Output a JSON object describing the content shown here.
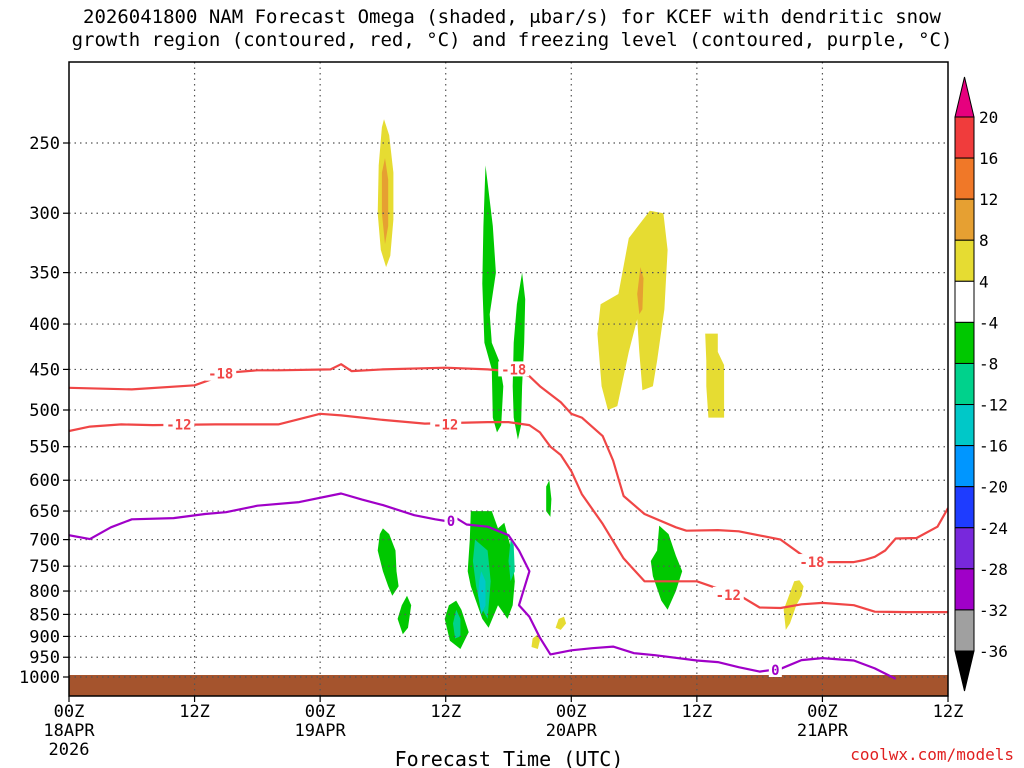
{
  "title": {
    "line1": "2026041800 NAM Forecast Omega (shaded, μbar/s) for KCEF with dendritic snow",
    "line2": "growth region (contoured, red, °C) and freezing level (contoured, purple, °C)"
  },
  "chart_data": {
    "type": "time-pressure cross-section",
    "xlabel": "Forecast Time (UTC)",
    "x_hours_range": [
      0,
      84
    ],
    "x_ticks": [
      {
        "hour": 0,
        "label": "00Z",
        "date": "18APR",
        "year": "2026"
      },
      {
        "hour": 12,
        "label": "12Z",
        "date": "",
        "year": ""
      },
      {
        "hour": 24,
        "label": "00Z",
        "date": "19APR",
        "year": ""
      },
      {
        "hour": 36,
        "label": "12Z",
        "date": "",
        "year": ""
      },
      {
        "hour": 48,
        "label": "00Z",
        "date": "20APR",
        "year": ""
      },
      {
        "hour": 60,
        "label": "12Z",
        "date": "",
        "year": ""
      },
      {
        "hour": 72,
        "label": "00Z",
        "date": "21APR",
        "year": ""
      },
      {
        "hour": 84,
        "label": "12Z",
        "date": "",
        "year": ""
      }
    ],
    "y_ticks": [
      250,
      300,
      350,
      400,
      450,
      500,
      550,
      600,
      650,
      700,
      750,
      800,
      850,
      900,
      950,
      1000
    ],
    "y_log": true,
    "y_range_hpa": [
      200,
      1040
    ],
    "grid": true,
    "colorbar": {
      "labels": [
        "20",
        "16",
        "12",
        "8",
        "4",
        "-4",
        "-8",
        "-12",
        "-16",
        "-20",
        "-24",
        "-28",
        "-32",
        "-36"
      ],
      "colors": [
        "#f03c3c",
        "#f07828",
        "#e6a032",
        "#e6dc32",
        "#ffffff",
        "#00c800",
        "#00d28c",
        "#00c8c8",
        "#0096ff",
        "#1e3cff",
        "#7828dc",
        "#a000c8",
        "#a0a0a0"
      ],
      "top_arrow_color": "#e6007e",
      "bottom_arrow_color": "#000000"
    },
    "contours": [
      {
        "label": "-18",
        "color": "#f04646",
        "points": [
          [
            0,
            472
          ],
          [
            6,
            474
          ],
          [
            12,
            469
          ],
          [
            14,
            460
          ],
          [
            16,
            453
          ],
          [
            18,
            451
          ],
          [
            20,
            451
          ],
          [
            25,
            450
          ],
          [
            26,
            444
          ],
          [
            27,
            452
          ],
          [
            30,
            450
          ],
          [
            36,
            448
          ],
          [
            40,
            450
          ],
          [
            42,
            452
          ],
          [
            44,
            458
          ],
          [
            45,
            470
          ],
          [
            47,
            490
          ],
          [
            48,
            505
          ],
          [
            49,
            510
          ],
          [
            51,
            535
          ],
          [
            52,
            570
          ],
          [
            53,
            625
          ],
          [
            55,
            655
          ],
          [
            58,
            678
          ],
          [
            59,
            684
          ],
          [
            62,
            683
          ],
          [
            64,
            685
          ],
          [
            68,
            700
          ],
          [
            70,
            728
          ],
          [
            72,
            742
          ],
          [
            75,
            742
          ],
          [
            76,
            738
          ],
          [
            77,
            732
          ],
          [
            78,
            720
          ],
          [
            79,
            698
          ],
          [
            81,
            697
          ],
          [
            83,
            677
          ],
          [
            84,
            645
          ]
        ]
      },
      {
        "label": "-12",
        "color": "#f04646",
        "points": [
          [
            0,
            528
          ],
          [
            2,
            522
          ],
          [
            5,
            519
          ],
          [
            8,
            520
          ],
          [
            14,
            519
          ],
          [
            20,
            519
          ],
          [
            24,
            505
          ],
          [
            26,
            507
          ],
          [
            28,
            510
          ],
          [
            30,
            513
          ],
          [
            34,
            518
          ],
          [
            40,
            516
          ],
          [
            42,
            516
          ],
          [
            44,
            520
          ],
          [
            45,
            530
          ],
          [
            46,
            550
          ],
          [
            47,
            562
          ],
          [
            48,
            586
          ],
          [
            49,
            622
          ],
          [
            51,
            672
          ],
          [
            53,
            735
          ],
          [
            55,
            780
          ],
          [
            58,
            780
          ],
          [
            60,
            780
          ],
          [
            62,
            795
          ],
          [
            63,
            804
          ],
          [
            64,
            808
          ],
          [
            66,
            835
          ],
          [
            68,
            836
          ],
          [
            70,
            828
          ],
          [
            72,
            825
          ],
          [
            75,
            830
          ],
          [
            77,
            844
          ],
          [
            80,
            845
          ],
          [
            84,
            845
          ]
        ]
      },
      {
        "label": "0",
        "color": "#a000c8",
        "points": [
          [
            0,
            692
          ],
          [
            2,
            699
          ],
          [
            4,
            678
          ],
          [
            6,
            664
          ],
          [
            10,
            662
          ],
          [
            13,
            655
          ],
          [
            15,
            652
          ],
          [
            18,
            641
          ],
          [
            22,
            635
          ],
          [
            26,
            621
          ],
          [
            28,
            631
          ],
          [
            30,
            640
          ],
          [
            33,
            657
          ],
          [
            35,
            664
          ],
          [
            36,
            667
          ],
          [
            37,
            662
          ],
          [
            38,
            673
          ],
          [
            40,
            677
          ],
          [
            42,
            692
          ],
          [
            43,
            720
          ],
          [
            44,
            760
          ],
          [
            43,
            830
          ],
          [
            44,
            855
          ],
          [
            45,
            903
          ],
          [
            46,
            943
          ],
          [
            48,
            933
          ],
          [
            50,
            928
          ],
          [
            52,
            924
          ],
          [
            54,
            940
          ],
          [
            56,
            945
          ],
          [
            60,
            958
          ],
          [
            62,
            962
          ],
          [
            64,
            975
          ],
          [
            66,
            986
          ],
          [
            68,
            979
          ],
          [
            70,
            957
          ],
          [
            72,
            952
          ],
          [
            75,
            958
          ],
          [
            77,
            978
          ],
          [
            79,
            1005
          ]
        ]
      }
    ],
    "omega_regions": [
      {
        "value_range": "4 to 8",
        "color": "#e6dc32",
        "center_hour": 30.2,
        "center_hpa": 290
      },
      {
        "value_range": "8 to 12",
        "color": "#e6a032",
        "center_hour": 30.2,
        "center_hpa": 290
      },
      {
        "value_range": "4 to 8",
        "color": "#e6dc32",
        "center_hour": 54.5,
        "center_hpa": 390
      },
      {
        "value_range": "8 to 12",
        "color": "#e6a032",
        "center_hour": 54.5,
        "center_hpa": 370
      },
      {
        "value_range": "4 to 8",
        "color": "#e6dc32",
        "center_hour": 61.5,
        "center_hpa": 450
      },
      {
        "value_range": "4 to 8",
        "color": "#e6dc32",
        "center_hour": 69.5,
        "center_hpa": 830
      },
      {
        "value_range": "4 to 8",
        "color": "#e6dc32",
        "center_hour": 44,
        "center_hpa": 880
      },
      {
        "value_range": "-4 to -8",
        "color": "#00c800",
        "center_hour": 40.5,
        "center_hpa": 380
      },
      {
        "value_range": "-4 to -8",
        "color": "#00c800",
        "center_hour": 43.5,
        "center_hpa": 420
      },
      {
        "value_range": "-4 to -8",
        "color": "#00c800",
        "center_hour": 35,
        "center_hpa": 780
      },
      {
        "value_range": "-8 to -12",
        "color": "#00d28c",
        "center_hour": 41.5,
        "center_hpa": 780
      },
      {
        "value_range": "-12 to -16",
        "color": "#00c8c8",
        "center_hour": 40.5,
        "center_hpa": 800
      },
      {
        "value_range": "-4 to -8",
        "color": "#00c800",
        "center_hour": 56.5,
        "center_hpa": 760
      }
    ]
  },
  "watermark": "coolwx.com/models"
}
